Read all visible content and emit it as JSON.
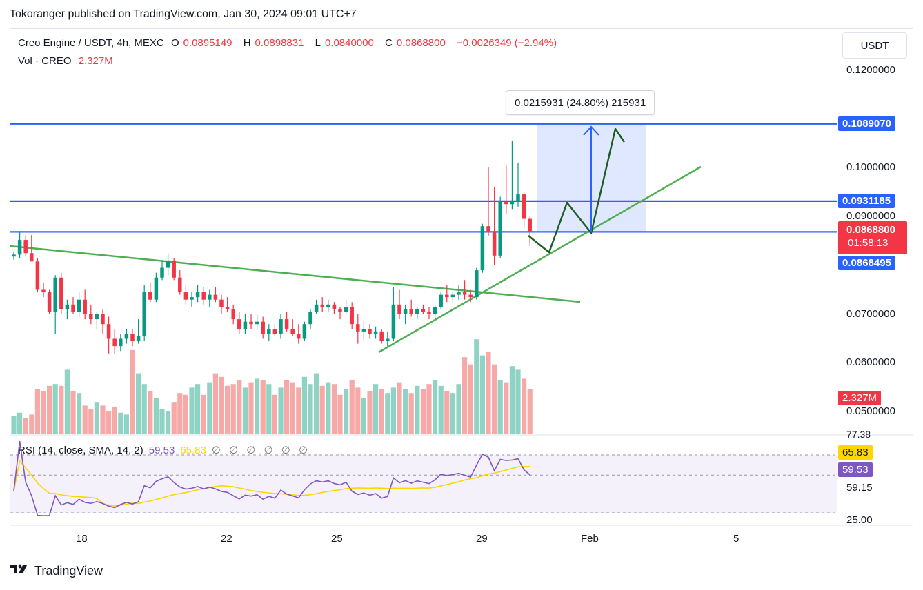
{
  "publish_line": "Tokoranger published on TradingView.com, Jan 30, 2024 09:01 UTC+7",
  "legend": {
    "symbol": "Creo Engine / USDT, 4h, MEXC",
    "o_label": "O",
    "o_value": "0.0895149",
    "h_label": "H",
    "h_value": "0.0898831",
    "l_label": "L",
    "l_value": "0.0840000",
    "c_label": "C",
    "c_value": "0.0868800",
    "change": "−0.0026349 (−2.94%)",
    "vol_label": "Vol · CREO",
    "vol_value": "2.327M"
  },
  "currency_button": "USDT",
  "price_axis_labels": [
    "0.1200000",
    "0.1000000",
    "0.0900000",
    "0.0700000",
    "0.0600000",
    "0.0500000"
  ],
  "price_badges": {
    "upper_line": "0.1089070",
    "mid_line": "0.0931185",
    "current_price": "0.0868800",
    "countdown": "01:58:13",
    "lower_line": "0.0868495",
    "volume": "2.327M"
  },
  "measure_tool": "0.0215931 (24.80%) 215931",
  "rsi": {
    "legend": "RSI (14, close, SMA, 14, 2)",
    "value": "59.53",
    "sma_value": "65.83",
    "placeholders": "∅ ∅ ∅ ∅ ∅ ∅",
    "axis_labels": [
      "77.38",
      "59.15",
      "25.00"
    ],
    "badge_sma": "65.83",
    "badge_rsi": "59.53"
  },
  "date_labels": [
    "18",
    "22",
    "25",
    "29",
    "Feb",
    "5"
  ],
  "brand": "TradingView",
  "colors": {
    "up": "#089981",
    "down": "#f23645",
    "hline": "#2962ff",
    "trend": "#4caf50",
    "projection": "#1b5e20",
    "rsi": "#7e57c2",
    "rsi_sma": "#ffd600"
  },
  "chart_data": {
    "type": "candlestick",
    "timeframe": "4h",
    "y_range": [
      0.044,
      0.127
    ],
    "horizontal_lines": [
      0.108907,
      0.0931185,
      0.0868495
    ],
    "candles": [
      {
        "o": 0.0818,
        "h": 0.0828,
        "l": 0.0812,
        "c": 0.0822
      },
      {
        "o": 0.0822,
        "h": 0.087,
        "l": 0.0815,
        "c": 0.0852
      },
      {
        "o": 0.0852,
        "h": 0.086,
        "l": 0.0818,
        "c": 0.0825
      },
      {
        "o": 0.0825,
        "h": 0.0862,
        "l": 0.081,
        "c": 0.0808
      },
      {
        "o": 0.0808,
        "h": 0.0815,
        "l": 0.0745,
        "c": 0.075
      },
      {
        "o": 0.075,
        "h": 0.0765,
        "l": 0.0735,
        "c": 0.0745
      },
      {
        "o": 0.0745,
        "h": 0.075,
        "l": 0.07,
        "c": 0.0705
      },
      {
        "o": 0.0705,
        "h": 0.078,
        "l": 0.066,
        "c": 0.0775
      },
      {
        "o": 0.0775,
        "h": 0.0785,
        "l": 0.07,
        "c": 0.071
      },
      {
        "o": 0.071,
        "h": 0.073,
        "l": 0.069,
        "c": 0.072
      },
      {
        "o": 0.072,
        "h": 0.0735,
        "l": 0.07,
        "c": 0.0705
      },
      {
        "o": 0.0705,
        "h": 0.0745,
        "l": 0.0695,
        "c": 0.073
      },
      {
        "o": 0.073,
        "h": 0.075,
        "l": 0.069,
        "c": 0.07
      },
      {
        "o": 0.07,
        "h": 0.072,
        "l": 0.068,
        "c": 0.069
      },
      {
        "o": 0.069,
        "h": 0.0705,
        "l": 0.067,
        "c": 0.07
      },
      {
        "o": 0.07,
        "h": 0.071,
        "l": 0.066,
        "c": 0.068
      },
      {
        "o": 0.068,
        "h": 0.0695,
        "l": 0.062,
        "c": 0.065
      },
      {
        "o": 0.065,
        "h": 0.067,
        "l": 0.062,
        "c": 0.0635
      },
      {
        "o": 0.0635,
        "h": 0.066,
        "l": 0.0625,
        "c": 0.065
      },
      {
        "o": 0.065,
        "h": 0.067,
        "l": 0.064,
        "c": 0.066
      },
      {
        "o": 0.066,
        "h": 0.067,
        "l": 0.0635,
        "c": 0.0645
      },
      {
        "o": 0.0645,
        "h": 0.069,
        "l": 0.064,
        "c": 0.0655
      },
      {
        "o": 0.0655,
        "h": 0.076,
        "l": 0.0645,
        "c": 0.0745
      },
      {
        "o": 0.0745,
        "h": 0.0765,
        "l": 0.0725,
        "c": 0.073
      },
      {
        "o": 0.073,
        "h": 0.0785,
        "l": 0.0725,
        "c": 0.0775
      },
      {
        "o": 0.0775,
        "h": 0.081,
        "l": 0.077,
        "c": 0.0795
      },
      {
        "o": 0.0795,
        "h": 0.0825,
        "l": 0.078,
        "c": 0.081
      },
      {
        "o": 0.081,
        "h": 0.0815,
        "l": 0.077,
        "c": 0.0775
      },
      {
        "o": 0.0775,
        "h": 0.079,
        "l": 0.074,
        "c": 0.0745
      },
      {
        "o": 0.0745,
        "h": 0.076,
        "l": 0.072,
        "c": 0.073
      },
      {
        "o": 0.073,
        "h": 0.0745,
        "l": 0.0715,
        "c": 0.0735
      },
      {
        "o": 0.0735,
        "h": 0.076,
        "l": 0.0725,
        "c": 0.0745
      },
      {
        "o": 0.0745,
        "h": 0.0755,
        "l": 0.072,
        "c": 0.073
      },
      {
        "o": 0.073,
        "h": 0.075,
        "l": 0.0715,
        "c": 0.074
      },
      {
        "o": 0.074,
        "h": 0.0755,
        "l": 0.0725,
        "c": 0.073
      },
      {
        "o": 0.073,
        "h": 0.074,
        "l": 0.07,
        "c": 0.0715
      },
      {
        "o": 0.0715,
        "h": 0.0735,
        "l": 0.0705,
        "c": 0.071
      },
      {
        "o": 0.071,
        "h": 0.072,
        "l": 0.068,
        "c": 0.069
      },
      {
        "o": 0.069,
        "h": 0.0705,
        "l": 0.066,
        "c": 0.067
      },
      {
        "o": 0.067,
        "h": 0.07,
        "l": 0.066,
        "c": 0.0685
      },
      {
        "o": 0.0685,
        "h": 0.07,
        "l": 0.067,
        "c": 0.068
      },
      {
        "o": 0.068,
        "h": 0.07,
        "l": 0.067,
        "c": 0.0685
      },
      {
        "o": 0.0685,
        "h": 0.0695,
        "l": 0.065,
        "c": 0.066
      },
      {
        "o": 0.066,
        "h": 0.068,
        "l": 0.0645,
        "c": 0.067
      },
      {
        "o": 0.067,
        "h": 0.068,
        "l": 0.0655,
        "c": 0.066
      },
      {
        "o": 0.066,
        "h": 0.07,
        "l": 0.065,
        "c": 0.069
      },
      {
        "o": 0.069,
        "h": 0.0705,
        "l": 0.0665,
        "c": 0.067
      },
      {
        "o": 0.067,
        "h": 0.069,
        "l": 0.0655,
        "c": 0.066
      },
      {
        "o": 0.066,
        "h": 0.068,
        "l": 0.064,
        "c": 0.065
      },
      {
        "o": 0.065,
        "h": 0.0685,
        "l": 0.0645,
        "c": 0.068
      },
      {
        "o": 0.068,
        "h": 0.071,
        "l": 0.067,
        "c": 0.0705
      },
      {
        "o": 0.0705,
        "h": 0.073,
        "l": 0.07,
        "c": 0.072
      },
      {
        "o": 0.072,
        "h": 0.0735,
        "l": 0.0705,
        "c": 0.0715
      },
      {
        "o": 0.0715,
        "h": 0.073,
        "l": 0.0705,
        "c": 0.072
      },
      {
        "o": 0.072,
        "h": 0.0725,
        "l": 0.07,
        "c": 0.071
      },
      {
        "o": 0.071,
        "h": 0.0715,
        "l": 0.069,
        "c": 0.0705
      },
      {
        "o": 0.0705,
        "h": 0.073,
        "l": 0.07,
        "c": 0.0715
      },
      {
        "o": 0.0715,
        "h": 0.0725,
        "l": 0.067,
        "c": 0.068
      },
      {
        "o": 0.068,
        "h": 0.07,
        "l": 0.064,
        "c": 0.0665
      },
      {
        "o": 0.0665,
        "h": 0.0685,
        "l": 0.0645,
        "c": 0.067
      },
      {
        "o": 0.067,
        "h": 0.068,
        "l": 0.065,
        "c": 0.066
      },
      {
        "o": 0.066,
        "h": 0.0675,
        "l": 0.065,
        "c": 0.0665
      },
      {
        "o": 0.0665,
        "h": 0.067,
        "l": 0.064,
        "c": 0.0645
      },
      {
        "o": 0.0645,
        "h": 0.0665,
        "l": 0.0635,
        "c": 0.065
      },
      {
        "o": 0.065,
        "h": 0.0755,
        "l": 0.0645,
        "c": 0.072
      },
      {
        "o": 0.072,
        "h": 0.075,
        "l": 0.069,
        "c": 0.07
      },
      {
        "o": 0.07,
        "h": 0.072,
        "l": 0.068,
        "c": 0.071
      },
      {
        "o": 0.071,
        "h": 0.073,
        "l": 0.0695,
        "c": 0.07
      },
      {
        "o": 0.07,
        "h": 0.0715,
        "l": 0.069,
        "c": 0.071
      },
      {
        "o": 0.071,
        "h": 0.072,
        "l": 0.07,
        "c": 0.0705
      },
      {
        "o": 0.0705,
        "h": 0.0715,
        "l": 0.069,
        "c": 0.07
      },
      {
        "o": 0.07,
        "h": 0.072,
        "l": 0.069,
        "c": 0.0715
      },
      {
        "o": 0.0715,
        "h": 0.0745,
        "l": 0.071,
        "c": 0.074
      },
      {
        "o": 0.074,
        "h": 0.076,
        "l": 0.0725,
        "c": 0.0735
      },
      {
        "o": 0.0735,
        "h": 0.0745,
        "l": 0.0725,
        "c": 0.074
      },
      {
        "o": 0.074,
        "h": 0.076,
        "l": 0.073,
        "c": 0.0745
      },
      {
        "o": 0.0745,
        "h": 0.077,
        "l": 0.073,
        "c": 0.074
      },
      {
        "o": 0.074,
        "h": 0.075,
        "l": 0.0725,
        "c": 0.0735
      },
      {
        "o": 0.0735,
        "h": 0.0795,
        "l": 0.073,
        "c": 0.079
      },
      {
        "o": 0.079,
        "h": 0.0885,
        "l": 0.0785,
        "c": 0.088
      },
      {
        "o": 0.088,
        "h": 0.1,
        "l": 0.086,
        "c": 0.087
      },
      {
        "o": 0.087,
        "h": 0.096,
        "l": 0.08,
        "c": 0.082
      },
      {
        "o": 0.082,
        "h": 0.094,
        "l": 0.0815,
        "c": 0.093
      },
      {
        "o": 0.093,
        "h": 0.1005,
        "l": 0.0905,
        "c": 0.0925
      },
      {
        "o": 0.0925,
        "h": 0.1055,
        "l": 0.0915,
        "c": 0.093
      },
      {
        "o": 0.093,
        "h": 0.101,
        "l": 0.092,
        "c": 0.0945
      },
      {
        "o": 0.0945,
        "h": 0.095,
        "l": 0.0875,
        "c": 0.0895
      },
      {
        "o": 0.0895,
        "h": 0.0899,
        "l": 0.084,
        "c": 0.0869
      }
    ],
    "volume": [
      0.01,
      0.012,
      0.009,
      0.011,
      0.025,
      0.024,
      0.027,
      0.028,
      0.027,
      0.036,
      0.024,
      0.023,
      0.016,
      0.014,
      0.018,
      0.016,
      0.013,
      0.015,
      0.012,
      0.011,
      0.047,
      0.034,
      0.028,
      0.024,
      0.02,
      0.014,
      0.013,
      0.018,
      0.023,
      0.022,
      0.026,
      0.028,
      0.022,
      0.029,
      0.034,
      0.032,
      0.027,
      0.028,
      0.03,
      0.026,
      0.029,
      0.031,
      0.03,
      0.028,
      0.022,
      0.026,
      0.03,
      0.029,
      0.026,
      0.032,
      0.028,
      0.034,
      0.027,
      0.029,
      0.028,
      0.022,
      0.025,
      0.03,
      0.026,
      0.02,
      0.024,
      0.028,
      0.025,
      0.023,
      0.026,
      0.029,
      0.025,
      0.023,
      0.027,
      0.025,
      0.028,
      0.03,
      0.027,
      0.024,
      0.023,
      0.028,
      0.043,
      0.039,
      0.053,
      0.044,
      0.046,
      0.039,
      0.03,
      0.029,
      0.038,
      0.036,
      0.031,
      0.025
    ],
    "rsi_range": [
      0,
      100
    ],
    "rsi_guides": [
      77.38,
      59.15,
      25.0
    ]
  }
}
